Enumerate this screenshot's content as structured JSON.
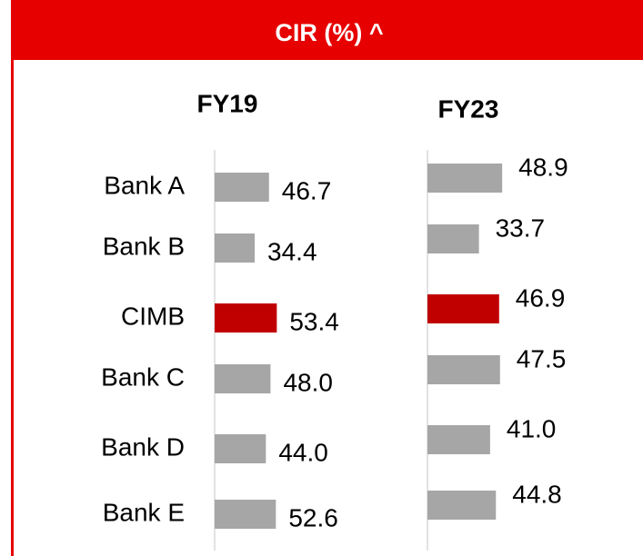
{
  "chart_data": {
    "type": "bar",
    "orientation": "horizontal",
    "title": "CIR (%) ^",
    "categories": [
      "Bank A",
      "Bank B",
      "CIMB",
      "Bank C",
      "Bank D",
      "Bank E"
    ],
    "series": [
      {
        "name": "FY19",
        "values": [
          46.7,
          34.4,
          53.4,
          48.0,
          44.0,
          52.6
        ],
        "value_labels": [
          "46.7",
          "34.4",
          "53.4",
          "48.0",
          "44.0",
          "52.6"
        ],
        "colors": [
          "#a6a6a6",
          "#a6a6a6",
          "#c00000",
          "#a6a6a6",
          "#a6a6a6",
          "#a6a6a6"
        ]
      },
      {
        "name": "FY23",
        "values": [
          48.9,
          33.7,
          46.9,
          47.5,
          41.0,
          44.8
        ],
        "value_labels": [
          "48.9",
          "33.7",
          "46.9",
          "47.5",
          "41.0",
          "44.8"
        ],
        "colors": [
          "#a6a6a6",
          "#a6a6a6",
          "#c00000",
          "#a6a6a6",
          "#a6a6a6",
          "#a6a6a6"
        ]
      }
    ]
  }
}
